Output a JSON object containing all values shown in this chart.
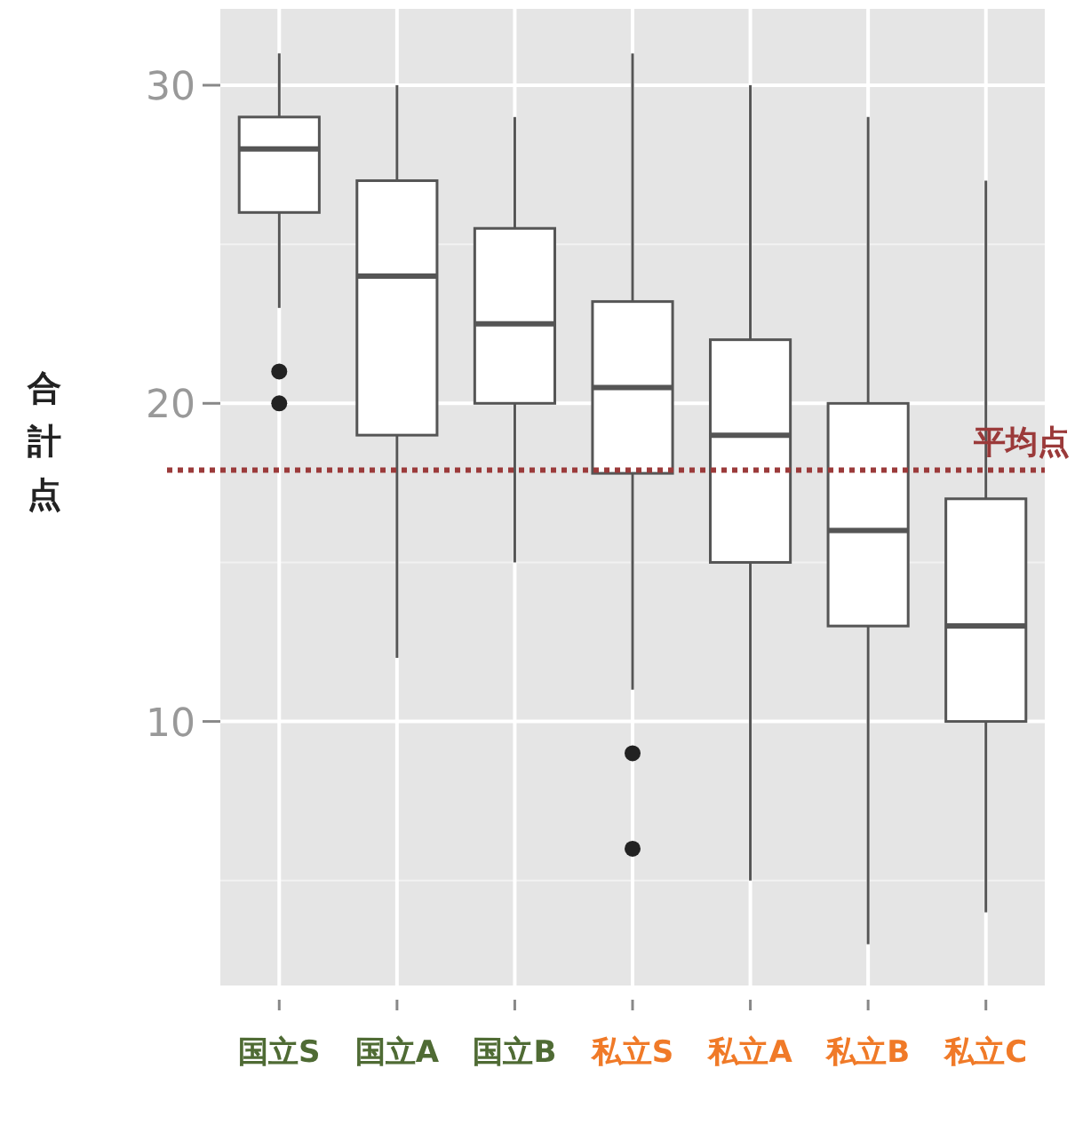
{
  "chart_data": {
    "type": "box",
    "ylabel": "合計点",
    "categories": [
      "国立S",
      "国立A",
      "国立B",
      "私立S",
      "私立A",
      "私立B",
      "私立C"
    ],
    "boxes": [
      {
        "low": 23,
        "q1": 26,
        "median": 28,
        "q3": 29,
        "high": 31,
        "outliers": [
          21,
          20
        ]
      },
      {
        "low": 12,
        "q1": 19,
        "median": 24,
        "q3": 27,
        "high": 30
      },
      {
        "low": 15,
        "q1": 20,
        "median": 22.5,
        "q3": 25.5,
        "high": 29
      },
      {
        "low": 11,
        "q1": 17.8,
        "median": 20.5,
        "q3": 23.2,
        "high": 31,
        "outliers": [
          9,
          6
        ]
      },
      {
        "low": 5,
        "q1": 15,
        "median": 19,
        "q3": 22,
        "high": 30
      },
      {
        "low": 3,
        "q1": 13,
        "median": 16,
        "q3": 20,
        "high": 29
      },
      {
        "low": 4,
        "q1": 10,
        "median": 13,
        "q3": 17,
        "high": 27
      }
    ],
    "ylim": [
      1.7,
      32.4
    ],
    "yticks": [
      10,
      20,
      30
    ],
    "grid": true,
    "ref_lines": [
      {
        "axis": "y",
        "value": 17.9,
        "label": "平均点",
        "color": "#9b3a3a",
        "line_style": "dotted"
      }
    ]
  }
}
